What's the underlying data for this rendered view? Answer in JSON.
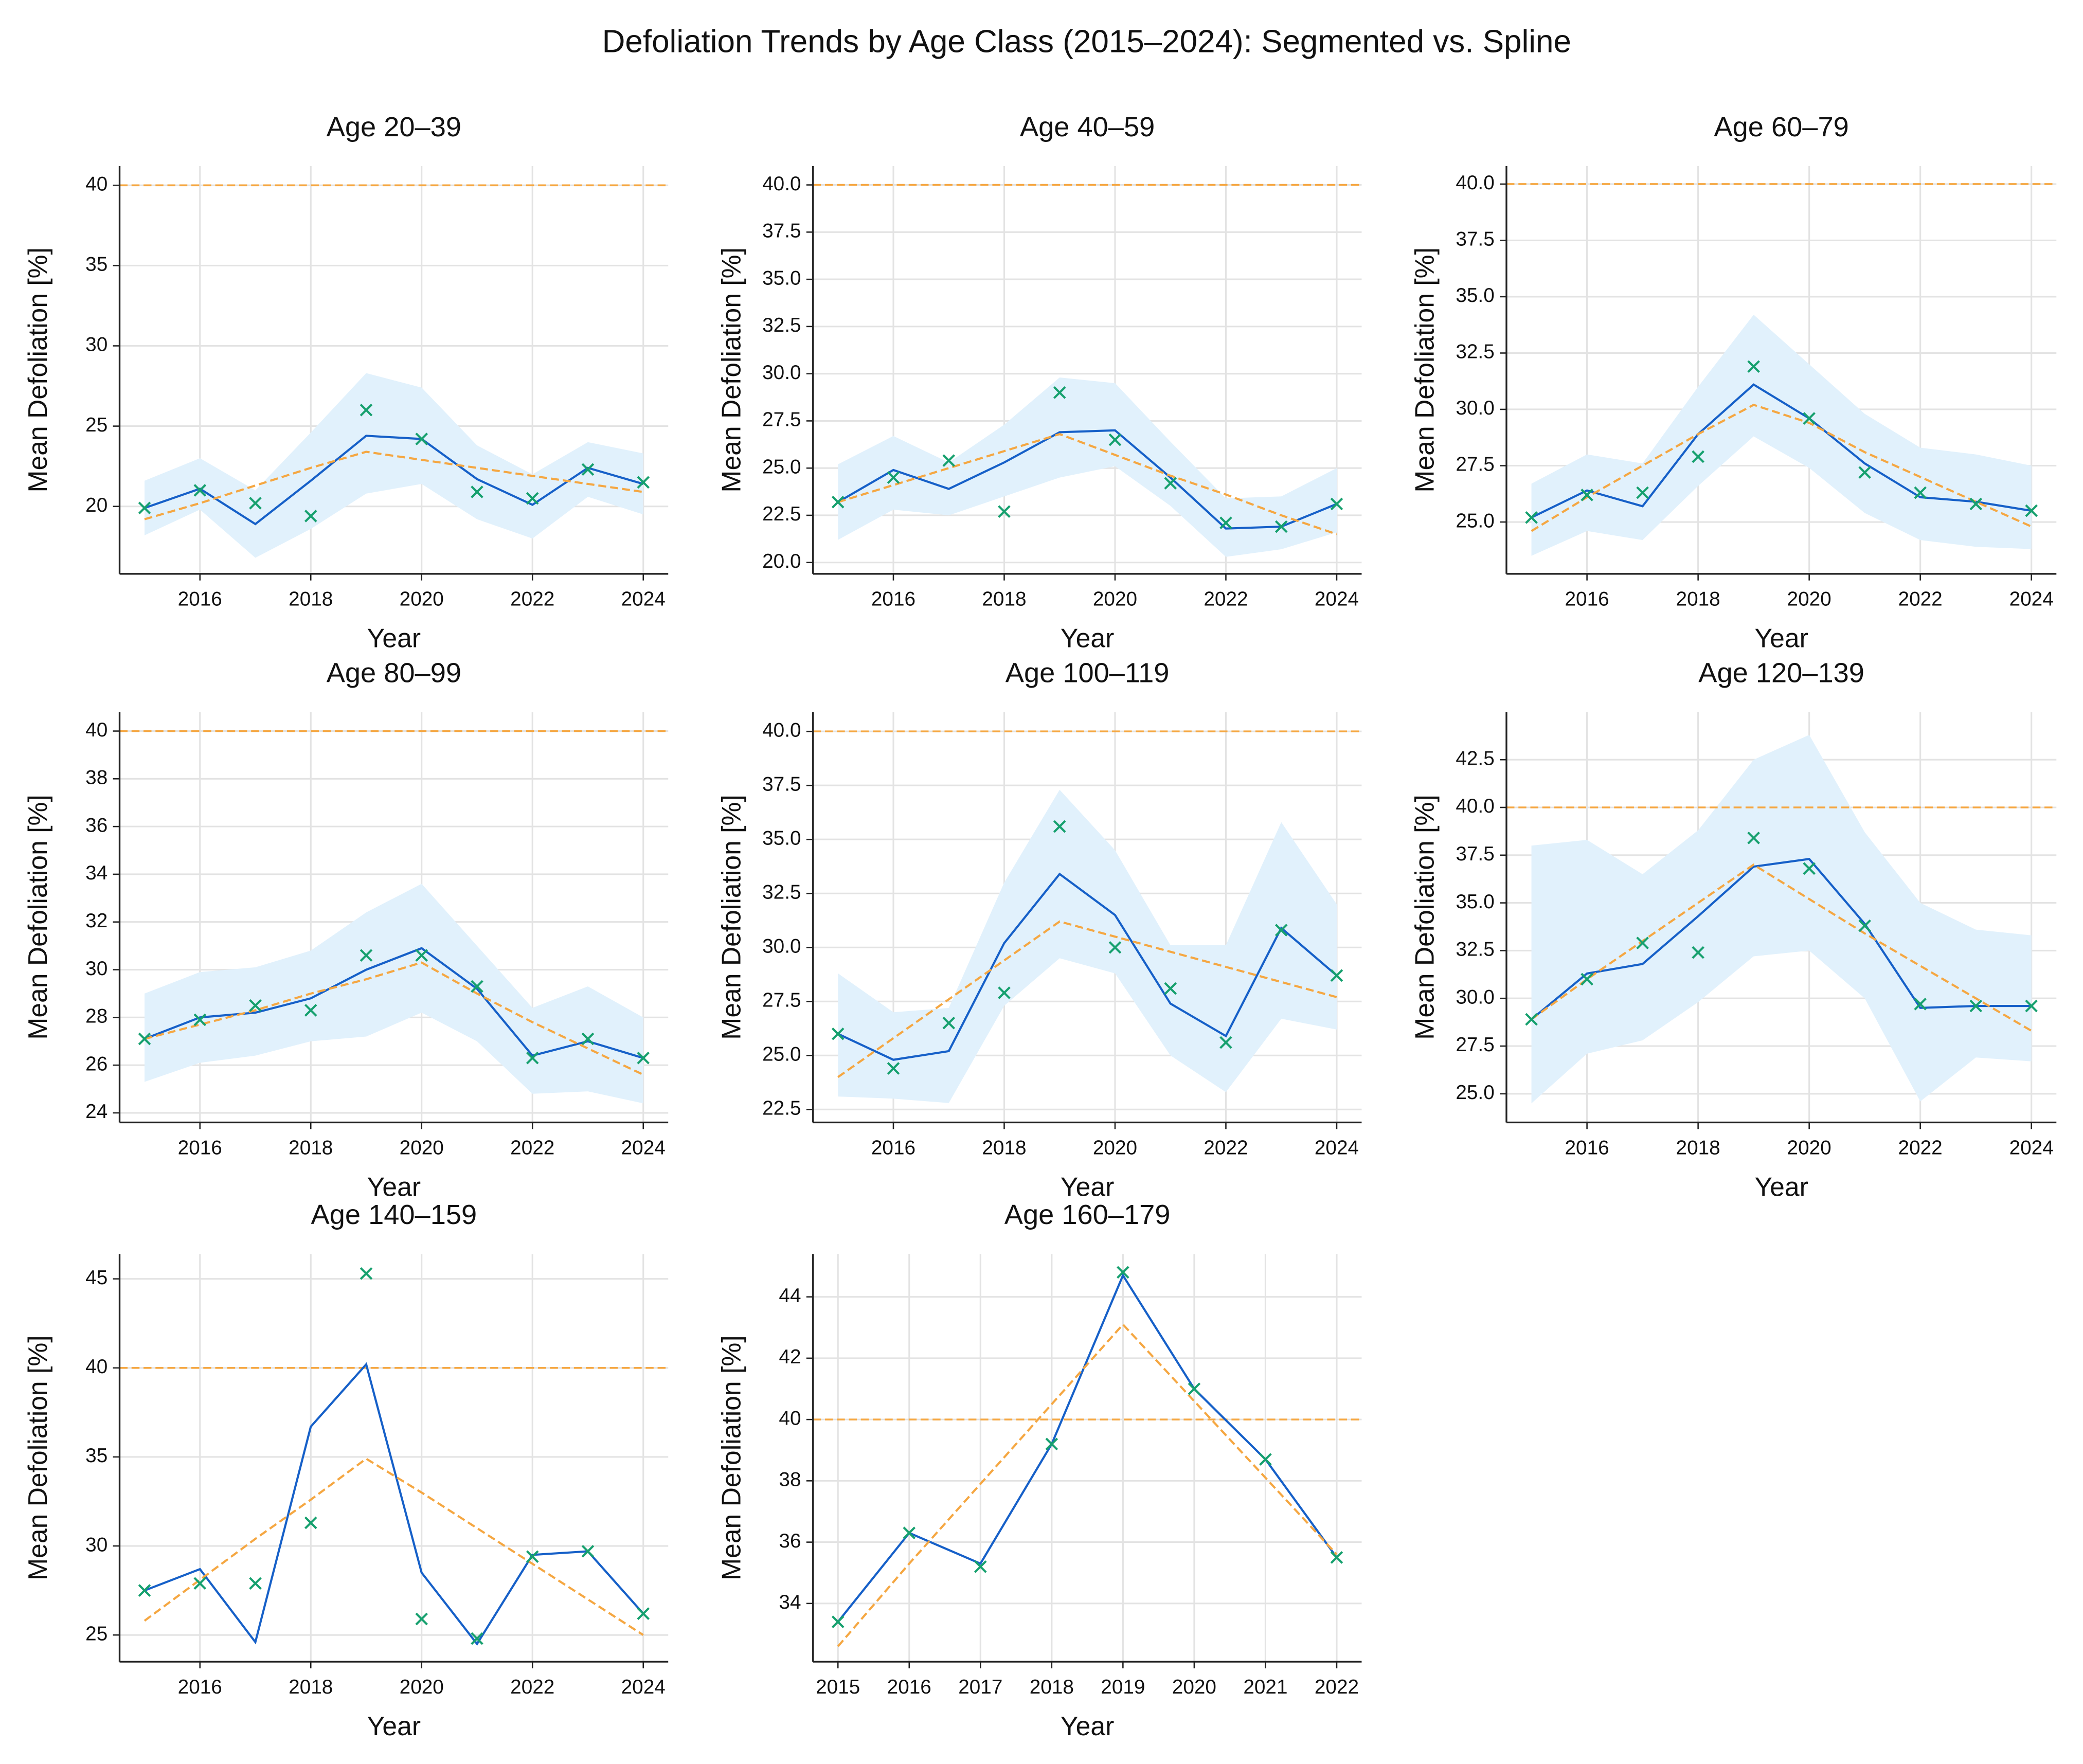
{
  "title": "Defoliation Trends by Age Class (2015–2024): Segmented vs. Spline",
  "chart_data": [
    {
      "type": "line",
      "title": "Age 20–39",
      "x_label": "Year",
      "y_label": "Mean Defoliation [%]",
      "x": [
        2015,
        2016,
        2017,
        2018,
        2019,
        2020,
        2021,
        2022,
        2023,
        2024
      ],
      "xlim": [
        2014.55,
        2024.45
      ],
      "xticks": [
        2016,
        2018,
        2020,
        2022,
        2024
      ],
      "ylim": [
        15.8,
        41.2
      ],
      "yticks": [
        20,
        25,
        30,
        35,
        40
      ],
      "grid": true,
      "hline": 40,
      "hline_color": "#f5a742",
      "band": {
        "color": "#e1f1fc",
        "lower": [
          18.2,
          19.8,
          16.8,
          18.6,
          20.8,
          21.4,
          19.2,
          18.0,
          20.6,
          19.5
        ],
        "upper": [
          21.6,
          23.0,
          21.0,
          24.6,
          28.3,
          27.4,
          23.8,
          22.0,
          24.0,
          23.3
        ]
      },
      "series": [
        {
          "color": "#1660c8",
          "style": "solid",
          "values": [
            19.9,
            21.1,
            18.9,
            21.6,
            24.4,
            24.2,
            21.7,
            20.1,
            22.4,
            21.4
          ]
        },
        {
          "color": "#f5a742",
          "style": "dashed",
          "values": [
            19.2,
            20.2,
            21.3,
            22.4,
            23.4,
            22.9,
            22.4,
            21.9,
            21.4,
            20.9
          ]
        },
        {
          "color": "#16a06e",
          "style": "marker",
          "values": [
            19.9,
            21.0,
            20.2,
            19.4,
            26.0,
            24.2,
            20.9,
            20.5,
            22.3,
            21.5
          ]
        }
      ]
    },
    {
      "type": "line",
      "title": "Age 40–59",
      "x_label": "Year",
      "y_label": "Mean Defoliation [%]",
      "x": [
        2015,
        2016,
        2017,
        2018,
        2019,
        2020,
        2021,
        2022,
        2023,
        2024
      ],
      "xlim": [
        2014.55,
        2024.45
      ],
      "xticks": [
        2016,
        2018,
        2020,
        2022,
        2024
      ],
      "ylim": [
        19.4,
        41.0
      ],
      "yticks": [
        {
          "value": 20,
          "label": "20.0"
        },
        22.5,
        {
          "value": 25,
          "label": "25.0"
        },
        27.5,
        {
          "value": 30,
          "label": "30.0"
        },
        32.5,
        {
          "value": 35,
          "label": "35.0"
        },
        37.5,
        {
          "value": 40,
          "label": "40.0"
        }
      ],
      "grid": true,
      "hline": 40,
      "hline_color": "#f5a742",
      "band": {
        "color": "#e1f1fc",
        "lower": [
          21.2,
          22.8,
          22.5,
          23.5,
          24.5,
          25.1,
          23.0,
          20.3,
          20.7,
          21.6
        ],
        "upper": [
          25.2,
          26.7,
          25.3,
          27.3,
          29.8,
          29.5,
          26.4,
          23.4,
          23.5,
          25.0
        ]
      },
      "series": [
        {
          "color": "#1660c8",
          "style": "solid",
          "values": [
            23.2,
            24.9,
            23.9,
            25.3,
            26.9,
            27.0,
            24.5,
            21.8,
            21.9,
            23.1
          ]
        },
        {
          "color": "#f5a742",
          "style": "dashed",
          "values": [
            23.2,
            24.1,
            25.0,
            25.9,
            26.8,
            25.7,
            24.6,
            23.6,
            22.5,
            21.5
          ]
        },
        {
          "color": "#16a06e",
          "style": "marker",
          "values": [
            23.2,
            24.5,
            25.4,
            22.7,
            29.0,
            26.5,
            24.2,
            22.1,
            21.9,
            23.1
          ]
        }
      ]
    },
    {
      "type": "line",
      "title": "Age 60–79",
      "x_label": "Year",
      "y_label": "Mean Defoliation [%]",
      "x": [
        2015,
        2016,
        2017,
        2018,
        2019,
        2020,
        2021,
        2022,
        2023,
        2024
      ],
      "xlim": [
        2014.55,
        2024.45
      ],
      "xticks": [
        2016,
        2018,
        2020,
        2022,
        2024
      ],
      "ylim": [
        22.7,
        40.8
      ],
      "yticks": [
        {
          "value": 25,
          "label": "25.0"
        },
        27.5,
        {
          "value": 30,
          "label": "30.0"
        },
        32.5,
        {
          "value": 35,
          "label": "35.0"
        },
        37.5,
        {
          "value": 40,
          "label": "40.0"
        }
      ],
      "grid": true,
      "hline": 40,
      "hline_color": "#f5a742",
      "band": {
        "color": "#e1f1fc",
        "lower": [
          23.5,
          24.6,
          24.2,
          26.6,
          28.8,
          27.4,
          25.4,
          24.2,
          23.9,
          23.8
        ],
        "upper": [
          26.7,
          28.0,
          27.6,
          31.0,
          34.2,
          32.0,
          29.8,
          28.3,
          28.0,
          27.5
        ]
      },
      "series": [
        {
          "color": "#1660c8",
          "style": "solid",
          "values": [
            25.2,
            26.4,
            25.7,
            28.9,
            31.1,
            29.6,
            27.6,
            26.1,
            25.9,
            25.5
          ]
        },
        {
          "color": "#f5a742",
          "style": "dashed",
          "values": [
            24.6,
            26.1,
            27.5,
            28.9,
            30.2,
            29.4,
            28.1,
            27.0,
            25.9,
            24.8
          ]
        },
        {
          "color": "#16a06e",
          "style": "marker",
          "values": [
            25.2,
            26.2,
            26.3,
            27.9,
            31.9,
            29.6,
            27.2,
            26.3,
            25.8,
            25.5
          ]
        }
      ]
    },
    {
      "type": "line",
      "title": "Age 80–99",
      "x_label": "Year",
      "y_label": "Mean Defoliation [%]",
      "x": [
        2015,
        2016,
        2017,
        2018,
        2019,
        2020,
        2021,
        2022,
        2023,
        2024
      ],
      "xlim": [
        2014.55,
        2024.45
      ],
      "xticks": [
        2016,
        2018,
        2020,
        2022,
        2024
      ],
      "ylim": [
        23.6,
        40.8
      ],
      "yticks": [
        24,
        26,
        28,
        30,
        32,
        34,
        36,
        38,
        40
      ],
      "grid": true,
      "hline": 40,
      "hline_color": "#f5a742",
      "band": {
        "color": "#e1f1fc",
        "lower": [
          25.3,
          26.1,
          26.4,
          27.0,
          27.2,
          28.2,
          27.0,
          24.8,
          24.9,
          24.4
        ],
        "upper": [
          29.0,
          29.9,
          30.1,
          30.8,
          32.4,
          33.6,
          31.0,
          28.4,
          29.3,
          28.0
        ]
      },
      "series": [
        {
          "color": "#1660c8",
          "style": "solid",
          "values": [
            27.1,
            28.0,
            28.2,
            28.8,
            30.0,
            30.9,
            29.2,
            26.4,
            27.0,
            26.3
          ]
        },
        {
          "color": "#f5a742",
          "style": "dashed",
          "values": [
            27.1,
            27.7,
            28.3,
            29.0,
            29.6,
            30.3,
            29.0,
            27.8,
            26.7,
            25.6
          ]
        },
        {
          "color": "#16a06e",
          "style": "marker",
          "values": [
            27.1,
            27.9,
            28.5,
            28.3,
            30.6,
            30.6,
            29.3,
            26.3,
            27.1,
            26.3
          ]
        }
      ]
    },
    {
      "type": "line",
      "title": "Age 100–119",
      "x_label": "Year",
      "y_label": "Mean Defoliation [%]",
      "x": [
        2015,
        2016,
        2017,
        2018,
        2019,
        2020,
        2021,
        2022,
        2023,
        2024
      ],
      "xlim": [
        2014.55,
        2024.45
      ],
      "xticks": [
        2016,
        2018,
        2020,
        2022,
        2024
      ],
      "ylim": [
        21.9,
        40.9
      ],
      "yticks": [
        22.5,
        {
          "value": 25,
          "label": "25.0"
        },
        27.5,
        {
          "value": 30,
          "label": "30.0"
        },
        32.5,
        {
          "value": 35,
          "label": "35.0"
        },
        37.5,
        {
          "value": 40,
          "label": "40.0"
        }
      ],
      "grid": true,
      "hline": 40,
      "hline_color": "#f5a742",
      "band": {
        "color": "#e1f1fc",
        "lower": [
          23.1,
          23.0,
          22.8,
          27.3,
          29.5,
          28.8,
          25.0,
          23.3,
          26.7,
          26.2
        ],
        "upper": [
          28.8,
          27.0,
          27.2,
          33.0,
          37.3,
          34.5,
          30.1,
          30.1,
          35.8,
          32.0
        ]
      },
      "series": [
        {
          "color": "#1660c8",
          "style": "solid",
          "values": [
            26.0,
            24.8,
            25.2,
            30.2,
            33.4,
            31.5,
            27.4,
            25.9,
            30.9,
            28.7
          ]
        },
        {
          "color": "#f5a742",
          "style": "dashed",
          "values": [
            24.0,
            25.8,
            27.6,
            29.4,
            31.2,
            30.5,
            29.8,
            29.1,
            28.4,
            27.7
          ]
        },
        {
          "color": "#16a06e",
          "style": "marker",
          "values": [
            26.0,
            24.4,
            26.5,
            27.9,
            35.6,
            30.0,
            28.1,
            25.6,
            30.8,
            28.7
          ]
        }
      ]
    },
    {
      "type": "line",
      "title": "Age 120–139",
      "x_label": "Year",
      "y_label": "Mean Defoliation [%]",
      "x": [
        2015,
        2016,
        2017,
        2018,
        2019,
        2020,
        2021,
        2022,
        2023,
        2024
      ],
      "xlim": [
        2014.55,
        2024.45
      ],
      "xticks": [
        2016,
        2018,
        2020,
        2022,
        2024
      ],
      "ylim": [
        23.5,
        45.0
      ],
      "yticks": [
        {
          "value": 25,
          "label": "25.0"
        },
        27.5,
        {
          "value": 30,
          "label": "30.0"
        },
        32.5,
        {
          "value": 35,
          "label": "35.0"
        },
        37.5,
        {
          "value": 40,
          "label": "40.0"
        },
        42.5
      ],
      "grid": true,
      "hline": 40,
      "hline_color": "#f5a742",
      "band": {
        "color": "#e1f1fc",
        "lower": [
          24.5,
          27.1,
          27.8,
          29.8,
          32.2,
          32.5,
          30.0,
          24.6,
          26.9,
          26.7
        ],
        "upper": [
          38.0,
          38.3,
          36.5,
          38.8,
          42.5,
          43.8,
          38.7,
          35.0,
          33.6,
          33.3
        ]
      },
      "series": [
        {
          "color": "#1660c8",
          "style": "solid",
          "values": [
            28.9,
            31.3,
            31.8,
            34.3,
            36.9,
            37.3,
            33.9,
            29.5,
            29.6,
            29.6
          ]
        },
        {
          "color": "#f5a742",
          "style": "dashed",
          "values": [
            28.9,
            31.0,
            33.0,
            35.0,
            37.0,
            35.2,
            33.4,
            31.7,
            30.0,
            28.3
          ]
        },
        {
          "color": "#16a06e",
          "style": "marker",
          "values": [
            28.9,
            31.0,
            32.9,
            32.4,
            38.4,
            36.8,
            33.8,
            29.7,
            29.6,
            29.6
          ]
        }
      ]
    },
    {
      "type": "line",
      "title": "Age 140–159",
      "x_label": "Year",
      "y_label": "Mean Defoliation [%]",
      "x": [
        2015,
        2016,
        2017,
        2018,
        2019,
        2020,
        2021,
        2022,
        2023,
        2024
      ],
      "xlim": [
        2014.55,
        2024.45
      ],
      "xticks": [
        2016,
        2018,
        2020,
        2022,
        2024
      ],
      "ylim": [
        23.5,
        46.4
      ],
      "yticks": [
        25,
        30,
        35,
        40,
        45
      ],
      "grid": true,
      "hline": 40,
      "hline_color": "#f5a742",
      "series": [
        {
          "color": "#1660c8",
          "style": "solid",
          "values": [
            27.5,
            28.7,
            24.6,
            36.7,
            40.2,
            28.5,
            24.5,
            29.5,
            29.7,
            26.2
          ]
        },
        {
          "color": "#f5a742",
          "style": "dashed",
          "values": [
            25.8,
            28.1,
            30.4,
            32.6,
            34.9,
            33.0,
            31.0,
            29.0,
            27.0,
            25.0
          ]
        },
        {
          "color": "#16a06e",
          "style": "marker",
          "values": [
            27.5,
            27.9,
            27.9,
            31.3,
            45.3,
            25.9,
            24.8,
            29.4,
            29.7,
            26.2
          ]
        }
      ]
    },
    {
      "type": "line",
      "title": "Age 160–179",
      "x_label": "Year",
      "y_label": "Mean Defoliation [%]",
      "x": [
        2015,
        2016,
        2017,
        2018,
        2019,
        2020,
        2021,
        2022
      ],
      "xlim": [
        2014.65,
        2022.35
      ],
      "xticks": [
        2015,
        2016,
        2017,
        2018,
        2019,
        2020,
        2021,
        2022
      ],
      "ylim": [
        32.1,
        45.4
      ],
      "yticks": [
        34,
        36,
        38,
        40,
        42,
        44
      ],
      "grid": true,
      "hline": 40,
      "hline_color": "#f5a742",
      "series": [
        {
          "color": "#1660c8",
          "style": "solid",
          "values": [
            33.4,
            36.3,
            35.3,
            39.2,
            44.7,
            41.0,
            38.7,
            35.5
          ]
        },
        {
          "color": "#f5a742",
          "style": "dashed",
          "values": [
            32.6,
            35.3,
            37.9,
            40.5,
            43.1,
            40.6,
            38.1,
            35.6
          ]
        },
        {
          "color": "#16a06e",
          "style": "marker",
          "values": [
            33.4,
            36.3,
            35.2,
            39.2,
            44.8,
            41.0,
            38.7,
            35.5
          ]
        }
      ]
    }
  ]
}
